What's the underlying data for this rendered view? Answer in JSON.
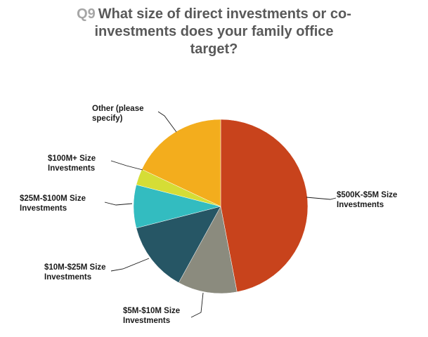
{
  "title": {
    "prefix": "Q9",
    "line1": "What size of direct investments or co-",
    "line2": "investments does your family office",
    "line3": "target?"
  },
  "chart_data": {
    "type": "pie",
    "title": "Q9 What size of direct investments or co-investments does your family office target?",
    "slices": [
      {
        "label": "$500K-$5M Size Investments",
        "lines": [
          "$500K-$5M Size",
          "Investments"
        ],
        "value": 47,
        "color": "#c8431c"
      },
      {
        "label": "$5M-$10M Size Investments",
        "lines": [
          "$5M-$10M Size",
          "Investments"
        ],
        "value": 11,
        "color": "#8b8b7e"
      },
      {
        "label": "$10M-$25M Size Investments",
        "lines": [
          "$10M-$25M Size",
          "Investments"
        ],
        "value": 13,
        "color": "#265665"
      },
      {
        "label": "$25M-$100M Size Investments",
        "lines": [
          "$25M-$100M Size",
          "Investments"
        ],
        "value": 8,
        "color": "#33bcc0"
      },
      {
        "label": "$100M+ Size Investments",
        "lines": [
          "$100M+ Size",
          "Investments"
        ],
        "value": 3,
        "color": "#d5dd36"
      },
      {
        "label": "Other (please specify)",
        "lines": [
          "Other (please",
          "specify)"
        ],
        "value": 18,
        "color": "#f3ad1d"
      }
    ],
    "start": "12 o'clock",
    "direction": "clockwise",
    "legend": "none (callout labels)"
  }
}
